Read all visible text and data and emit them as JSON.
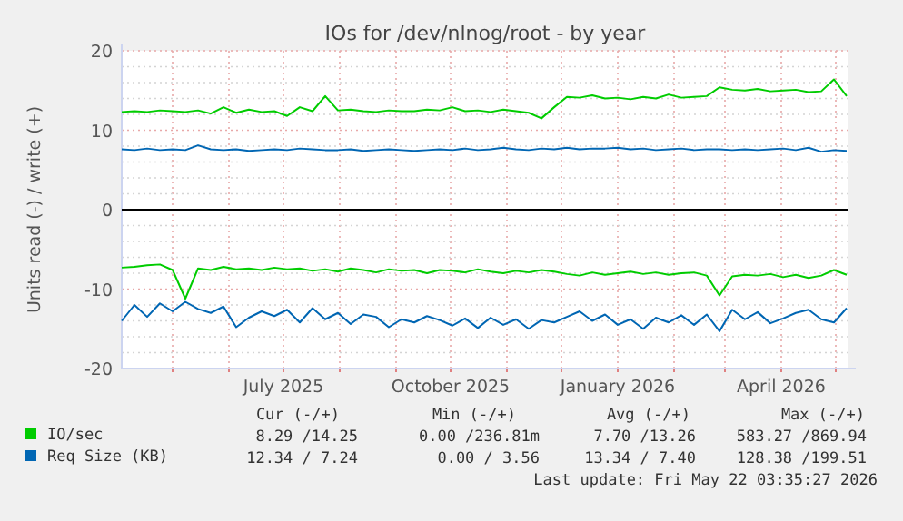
{
  "chart_data": {
    "type": "line",
    "title": "IOs for /dev/nlnog/root - by year",
    "ylabel": "Units read (-) / write (+)",
    "x": [
      "2025-04-03",
      "2025-04-10",
      "2025-04-17",
      "2025-04-24",
      "2025-05-01",
      "2025-05-08",
      "2025-05-15",
      "2025-05-22",
      "2025-05-29",
      "2025-06-05",
      "2025-06-12",
      "2025-06-19",
      "2025-06-26",
      "2025-07-03",
      "2025-07-10",
      "2025-07-17",
      "2025-07-24",
      "2025-07-31",
      "2025-08-07",
      "2025-08-14",
      "2025-08-21",
      "2025-08-28",
      "2025-09-04",
      "2025-09-11",
      "2025-09-18",
      "2025-09-25",
      "2025-10-02",
      "2025-10-09",
      "2025-10-16",
      "2025-10-23",
      "2025-10-30",
      "2025-11-06",
      "2025-11-13",
      "2025-11-20",
      "2025-11-27",
      "2025-12-04",
      "2025-12-11",
      "2025-12-18",
      "2025-12-25",
      "2026-01-01",
      "2026-01-08",
      "2026-01-15",
      "2026-01-22",
      "2026-01-29",
      "2026-02-05",
      "2026-02-12",
      "2026-02-19",
      "2026-02-26",
      "2026-03-05",
      "2026-03-12",
      "2026-03-19",
      "2026-03-26",
      "2026-04-02",
      "2026-04-09",
      "2026-04-16",
      "2026-04-23",
      "2026-04-30",
      "2026-05-07"
    ],
    "series": [
      {
        "name": "IO/sec",
        "color": "#00cc00",
        "values": [
          12.3,
          12.4,
          12.3,
          12.5,
          12.4,
          12.3,
          12.5,
          12.1,
          12.9,
          12.2,
          12.6,
          12.3,
          12.4,
          11.8,
          12.9,
          12.4,
          14.3,
          12.5,
          12.6,
          12.4,
          12.3,
          12.5,
          12.4,
          12.4,
          12.6,
          12.5,
          12.9,
          12.4,
          12.5,
          12.3,
          12.6,
          12.4,
          12.2,
          11.5,
          12.9,
          14.2,
          14.1,
          14.4,
          14.0,
          14.1,
          13.9,
          14.2,
          14.0,
          14.5,
          14.1,
          14.2,
          14.3,
          15.4,
          15.1,
          15.0,
          15.2,
          14.9,
          15.0,
          15.1,
          14.8,
          14.9,
          16.4,
          14.3
        ]
      },
      {
        "color": "#00cc00",
        "values": [
          -7.3,
          -7.2,
          -7.0,
          -6.9,
          -7.6,
          -11.2,
          -7.4,
          -7.6,
          -7.2,
          -7.5,
          -7.4,
          -7.6,
          -7.3,
          -7.5,
          -7.4,
          -7.7,
          -7.5,
          -7.8,
          -7.4,
          -7.6,
          -7.9,
          -7.5,
          -7.7,
          -7.6,
          -8.0,
          -7.6,
          -7.7,
          -7.9,
          -7.5,
          -7.8,
          -8.0,
          -7.7,
          -7.9,
          -7.6,
          -7.8,
          -8.1,
          -8.3,
          -7.9,
          -8.2,
          -8.0,
          -7.8,
          -8.1,
          -7.9,
          -8.2,
          -8.0,
          -7.9,
          -8.3,
          -10.8,
          -8.4,
          -8.2,
          -8.3,
          -8.1,
          -8.5,
          -8.2,
          -8.6,
          -8.3,
          -7.6,
          -8.2
        ]
      },
      {
        "name": "Req Size (KB)",
        "color": "#0066b3",
        "values": [
          7.6,
          7.5,
          7.7,
          7.5,
          7.6,
          7.5,
          8.1,
          7.6,
          7.5,
          7.6,
          7.4,
          7.5,
          7.6,
          7.5,
          7.7,
          7.6,
          7.5,
          7.5,
          7.6,
          7.4,
          7.5,
          7.6,
          7.5,
          7.4,
          7.5,
          7.6,
          7.5,
          7.7,
          7.5,
          7.6,
          7.8,
          7.6,
          7.5,
          7.7,
          7.6,
          7.8,
          7.6,
          7.7,
          7.7,
          7.8,
          7.6,
          7.7,
          7.5,
          7.6,
          7.7,
          7.5,
          7.6,
          7.6,
          7.5,
          7.6,
          7.5,
          7.6,
          7.7,
          7.5,
          7.8,
          7.3,
          7.5,
          7.4
        ]
      },
      {
        "color": "#0066b3",
        "values": [
          -14.0,
          -12.0,
          -13.5,
          -11.8,
          -12.8,
          -11.6,
          -12.5,
          -13.0,
          -12.2,
          -14.8,
          -13.6,
          -12.8,
          -13.4,
          -12.6,
          -14.2,
          -12.4,
          -13.8,
          -13.0,
          -14.4,
          -13.2,
          -13.5,
          -14.8,
          -13.8,
          -14.2,
          -13.4,
          -13.9,
          -14.6,
          -13.7,
          -14.9,
          -13.6,
          -14.5,
          -13.8,
          -15.0,
          -13.9,
          -14.2,
          -13.5,
          -12.8,
          -14.0,
          -13.2,
          -14.5,
          -13.8,
          -15.0,
          -13.6,
          -14.2,
          -13.3,
          -14.5,
          -13.2,
          -15.3,
          -12.6,
          -13.8,
          -12.9,
          -14.3,
          -13.7,
          -13.0,
          -12.6,
          -13.8,
          -14.2,
          -12.4
        ]
      }
    ],
    "xlim": [
      "2025-04-03",
      "2026-05-08"
    ],
    "xticks": [
      {
        "value": "2025-05-01",
        "label": null
      },
      {
        "value": "2025-06-01",
        "label": null
      },
      {
        "value": "2025-07-01",
        "label": "July 2025"
      },
      {
        "value": "2025-08-01",
        "label": null
      },
      {
        "value": "2025-09-01",
        "label": null
      },
      {
        "value": "2025-10-01",
        "label": "October 2025"
      },
      {
        "value": "2025-11-01",
        "label": null
      },
      {
        "value": "2025-12-01",
        "label": null
      },
      {
        "value": "2026-01-01",
        "label": "January 2026"
      },
      {
        "value": "2026-02-01",
        "label": null
      },
      {
        "value": "2026-03-01",
        "label": null
      },
      {
        "value": "2026-04-01",
        "label": "April 2026"
      },
      {
        "value": "2026-05-01",
        "label": null
      }
    ],
    "ylim": [
      -20,
      20
    ],
    "yticks": [
      -20,
      {
        "value": -18,
        "label": null
      },
      {
        "value": -16,
        "label": null
      },
      {
        "value": -14,
        "label": null
      },
      {
        "value": -12,
        "label": null
      },
      -10,
      {
        "value": -8,
        "label": null
      },
      {
        "value": -6,
        "label": null
      },
      {
        "value": -4,
        "label": null
      },
      {
        "value": -2,
        "label": null
      },
      0,
      {
        "value": 2,
        "label": null
      },
      {
        "value": 4,
        "label": null
      },
      {
        "value": 6,
        "label": null
      },
      {
        "value": 8,
        "label": null
      },
      10,
      {
        "value": 12,
        "label": null
      },
      {
        "value": 14,
        "label": null
      },
      {
        "value": 16,
        "label": null
      },
      {
        "value": 18,
        "label": null
      },
      20
    ],
    "ref_lines": [
      {
        "axis": "y",
        "value": 0,
        "color": "#000000"
      }
    ],
    "grid": true,
    "legend": "bottom left",
    "line_style": "solid",
    "annotations": [
      "Cur (-/+)",
      "Min (-/+)",
      "Avg (-/+)",
      "Max (-/+)",
      "8.29 /14.25",
      "0.00 /236.81m",
      "7.70 /13.26",
      "583.27 /869.94",
      "12.34 / 7.24",
      "0.00 / 3.56",
      "13.34 / 7.40",
      "128.38 /199.51",
      "Last update: Fri May 22 03:35:27 2026"
    ]
  }
}
